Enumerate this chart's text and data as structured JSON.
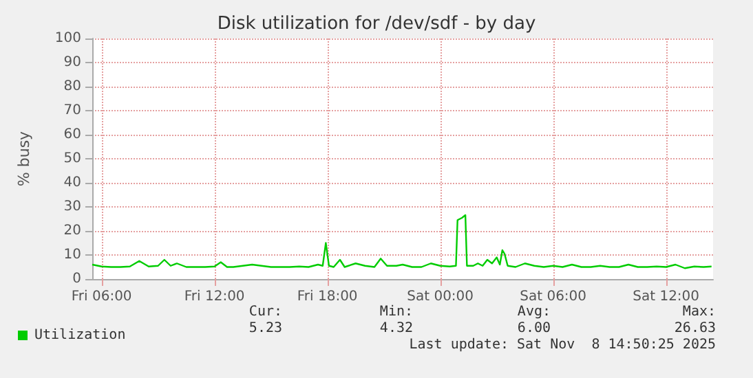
{
  "chart_data": {
    "type": "line",
    "title": "Disk utilization for /dev/sdf - by day",
    "ylabel": "% busy",
    "x": [
      "2025-11-07T05:30",
      "2025-11-07T06:00",
      "2025-11-07T06:30",
      "2025-11-07T07:00",
      "2025-11-07T07:30",
      "2025-11-07T08:00",
      "2025-11-07T08:30",
      "2025-11-07T09:00",
      "2025-11-07T09:20",
      "2025-11-07T09:40",
      "2025-11-07T10:00",
      "2025-11-07T10:30",
      "2025-11-07T11:00",
      "2025-11-07T11:30",
      "2025-11-07T12:00",
      "2025-11-07T12:20",
      "2025-11-07T12:40",
      "2025-11-07T13:00",
      "2025-11-07T13:30",
      "2025-11-07T14:00",
      "2025-11-07T14:30",
      "2025-11-07T15:00",
      "2025-11-07T15:30",
      "2025-11-07T16:00",
      "2025-11-07T16:30",
      "2025-11-07T17:00",
      "2025-11-07T17:30",
      "2025-11-07T17:45",
      "2025-11-07T17:55",
      "2025-11-07T18:05",
      "2025-11-07T18:20",
      "2025-11-07T18:40",
      "2025-11-07T18:55",
      "2025-11-07T19:30",
      "2025-11-07T20:00",
      "2025-11-07T20:30",
      "2025-11-07T20:50",
      "2025-11-07T21:10",
      "2025-11-07T21:40",
      "2025-11-07T22:00",
      "2025-11-07T22:30",
      "2025-11-07T23:00",
      "2025-11-07T23:30",
      "2025-11-08T00:00",
      "2025-11-08T00:30",
      "2025-11-08T00:50",
      "2025-11-08T00:55",
      "2025-11-08T01:10",
      "2025-11-08T01:20",
      "2025-11-08T01:25",
      "2025-11-08T01:45",
      "2025-11-08T02:00",
      "2025-11-08T02:15",
      "2025-11-08T02:30",
      "2025-11-08T02:45",
      "2025-11-08T03:00",
      "2025-11-08T03:10",
      "2025-11-08T03:18",
      "2025-11-08T03:25",
      "2025-11-08T03:35",
      "2025-11-08T04:00",
      "2025-11-08T04:30",
      "2025-11-08T05:00",
      "2025-11-08T05:30",
      "2025-11-08T06:00",
      "2025-11-08T06:30",
      "2025-11-08T07:00",
      "2025-11-08T07:30",
      "2025-11-08T08:00",
      "2025-11-08T08:30",
      "2025-11-08T09:00",
      "2025-11-08T09:30",
      "2025-11-08T10:00",
      "2025-11-08T10:30",
      "2025-11-08T11:00",
      "2025-11-08T11:30",
      "2025-11-08T12:00",
      "2025-11-08T12:30",
      "2025-11-08T13:00",
      "2025-11-08T13:30",
      "2025-11-08T14:00",
      "2025-11-08T14:25"
    ],
    "series": [
      {
        "name": "Utilization",
        "color": "#00cc00",
        "values": [
          6.0,
          5.2,
          5.0,
          5.0,
          5.2,
          7.5,
          5.2,
          5.5,
          8.0,
          5.5,
          6.5,
          5.0,
          5.0,
          5.0,
          5.2,
          7.0,
          5.0,
          5.0,
          5.5,
          6.0,
          5.5,
          5.0,
          5.0,
          5.0,
          5.2,
          5.0,
          6.0,
          5.5,
          15.0,
          5.5,
          5.0,
          8.0,
          5.0,
          6.5,
          5.5,
          5.0,
          8.5,
          5.5,
          5.5,
          6.0,
          5.0,
          5.0,
          6.5,
          5.5,
          5.2,
          5.5,
          24.5,
          25.5,
          26.6,
          5.5,
          5.5,
          6.5,
          5.5,
          8.0,
          6.5,
          9.0,
          6.0,
          12.0,
          10.5,
          5.5,
          5.0,
          6.5,
          5.5,
          5.0,
          5.5,
          5.0,
          6.0,
          5.0,
          5.0,
          5.5,
          5.0,
          5.0,
          6.0,
          5.0,
          5.0,
          5.2,
          5.0,
          6.0,
          4.5,
          5.2,
          5.0,
          5.2
        ]
      }
    ],
    "xlim": [
      "2025-11-07T05:30",
      "2025-11-08T14:30"
    ],
    "xticks": [
      {
        "value": "2025-11-07T06:00",
        "label": "Fri 06:00"
      },
      {
        "value": "2025-11-07T12:00",
        "label": "Fri 12:00"
      },
      {
        "value": "2025-11-07T18:00",
        "label": "Fri 18:00"
      },
      {
        "value": "2025-11-08T00:00",
        "label": "Sat 00:00"
      },
      {
        "value": "2025-11-08T06:00",
        "label": "Sat 06:00"
      },
      {
        "value": "2025-11-08T12:00",
        "label": "Sat 12:00"
      }
    ],
    "ylim": [
      0,
      100
    ],
    "yticks": [
      0,
      10,
      20,
      30,
      40,
      50,
      60,
      70,
      80,
      90,
      100
    ],
    "grid": true,
    "legend": "bottom left",
    "marker": "none",
    "line_style": "solid",
    "annotations": [
      "Cur:",
      "Min:",
      "Avg:",
      "Max:",
      "5.23",
      "4.32",
      "6.00",
      "26.63",
      "Last update: Sat Nov  8 14:50:25 2025"
    ]
  }
}
